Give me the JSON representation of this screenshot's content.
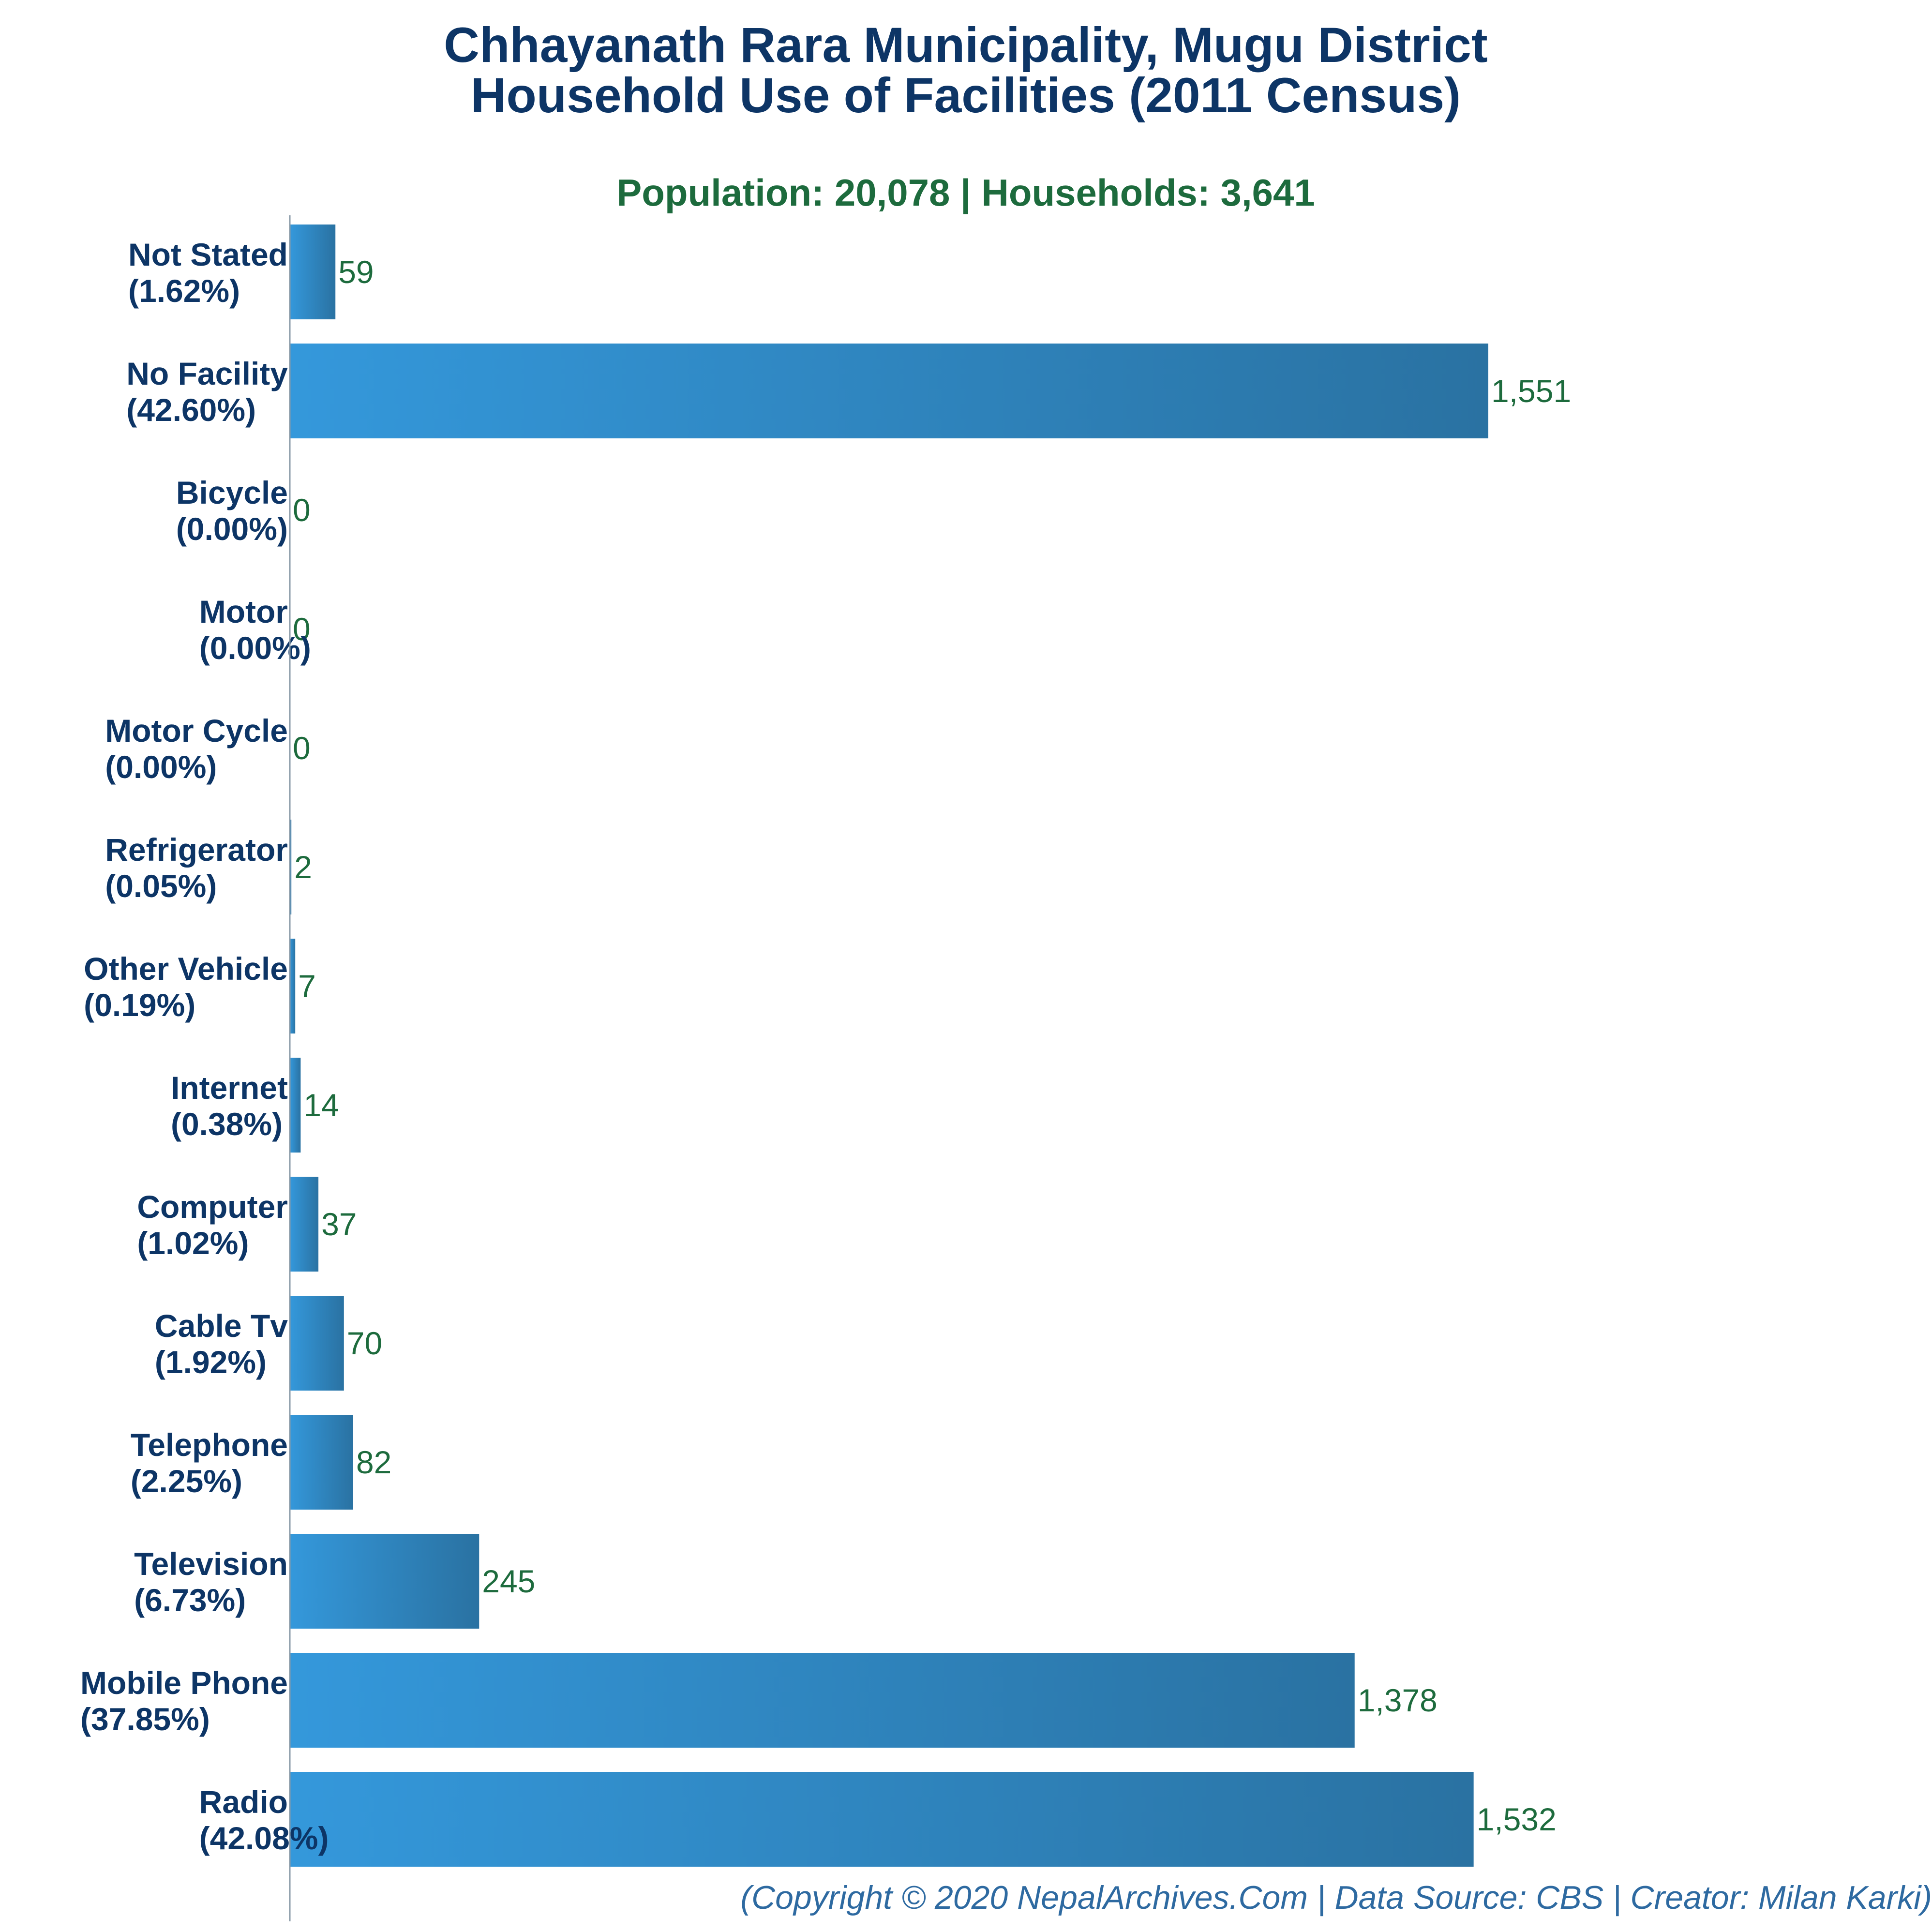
{
  "colors": {
    "title": "#0d3566",
    "subtitle": "#1d6b3d",
    "bar_start": "#3498db",
    "bar_end": "#2a72a2",
    "value_label": "#1d6b3d",
    "footer": "#2e6aa1"
  },
  "footer": "(Copyright © 2020 NepalArchives.Com | Data Source: CBS | Creator: Milan Karki)",
  "chart_data": {
    "type": "bar",
    "orientation": "horizontal",
    "title_lines": [
      "Chhayanath Rara Municipality, Mugu District",
      "Household Use of Facilities (2011 Census)"
    ],
    "subtitle": "Population: 20,078 | Households: 3,641",
    "xlabel": "",
    "ylabel": "",
    "xlim": [
      0,
      1551
    ],
    "grid": false,
    "categories": [
      {
        "name": "Not Stated",
        "pct": "(1.62%)",
        "value": 59,
        "label": "59"
      },
      {
        "name": "No Facility",
        "pct": "(42.60%)",
        "value": 1551,
        "label": "1,551"
      },
      {
        "name": "Bicycle",
        "pct": "(0.00%)",
        "value": 0,
        "label": "0"
      },
      {
        "name": "Motor",
        "pct": "(0.00%)",
        "value": 0,
        "label": "0"
      },
      {
        "name": "Motor Cycle",
        "pct": "(0.00%)",
        "value": 0,
        "label": "0"
      },
      {
        "name": "Refrigerator",
        "pct": "(0.05%)",
        "value": 2,
        "label": "2"
      },
      {
        "name": "Other Vehicle",
        "pct": "(0.19%)",
        "value": 7,
        "label": "7"
      },
      {
        "name": "Internet",
        "pct": "(0.38%)",
        "value": 14,
        "label": "14"
      },
      {
        "name": "Computer",
        "pct": "(1.02%)",
        "value": 37,
        "label": "37"
      },
      {
        "name": "Cable Tv",
        "pct": "(1.92%)",
        "value": 70,
        "label": "70"
      },
      {
        "name": "Telephone",
        "pct": "(2.25%)",
        "value": 82,
        "label": "82"
      },
      {
        "name": "Television",
        "pct": "(6.73%)",
        "value": 245,
        "label": "245"
      },
      {
        "name": "Mobile Phone",
        "pct": "(37.85%)",
        "value": 1378,
        "label": "1,378"
      },
      {
        "name": "Radio",
        "pct": "(42.08%)",
        "value": 1532,
        "label": "1,532"
      }
    ]
  }
}
